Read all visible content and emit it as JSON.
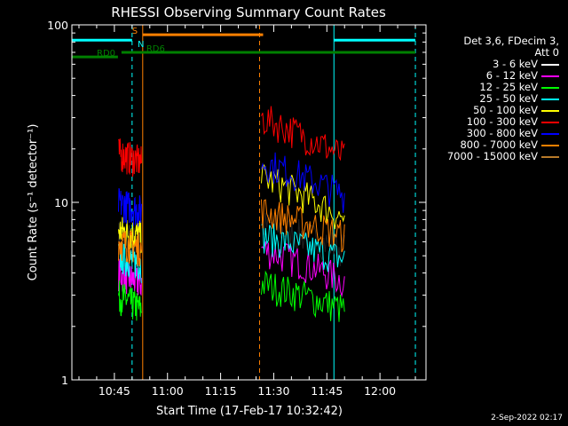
{
  "chart_data": {
    "type": "line",
    "title": "RHESSI Observing Summary Count Rates",
    "xlabel": "Start Time (17-Feb-17 10:32:42)",
    "ylabel": "Count Rate (s⁻¹ detector⁻¹)",
    "y_scale": "log",
    "ylim": [
      1,
      100
    ],
    "xlim": [
      "10:33",
      "12:13"
    ],
    "x_ticks": [
      "10:45",
      "11:00",
      "11:15",
      "11:30",
      "11:45",
      "12:00"
    ],
    "y_ticks": [
      "1",
      "10",
      "100"
    ],
    "legend_header": [
      "Det 3,6, FDecim 3,",
      "Att 0"
    ],
    "series": [
      {
        "name": "3 - 6 keV",
        "color": "#000000",
        "seg1": [
          6.5,
          6.0
        ],
        "seg2": [
          7.5,
          5.5
        ]
      },
      {
        "name": "6 - 12 keV",
        "color": "#ff00ff",
        "seg1": [
          4.0,
          3.5
        ],
        "seg2": [
          5.5,
          3.6
        ]
      },
      {
        "name": "12 - 25 keV",
        "color": "#00ff00",
        "seg1": [
          3.0,
          2.5
        ],
        "seg2": [
          3.5,
          2.5
        ]
      },
      {
        "name": "25 - 50 keV",
        "color": "#00ffff",
        "seg1": [
          5.0,
          4.5
        ],
        "seg2": [
          6.5,
          4.8
        ]
      },
      {
        "name": "50 - 100 keV",
        "color": "#ffff00",
        "seg1": [
          7.0,
          6.5
        ],
        "seg2": [
          14.0,
          8.0
        ]
      },
      {
        "name": "100 - 300 keV",
        "color": "#ff0000",
        "seg1": [
          19.0,
          17.0
        ],
        "seg2": [
          30.0,
          18.0
        ]
      },
      {
        "name": "300 - 800 keV",
        "color": "#0000ff",
        "seg1": [
          10.0,
          9.0
        ],
        "seg2": [
          17.0,
          11.0
        ]
      },
      {
        "name": "800 - 7000 keV",
        "color": "#ff8000",
        "seg1": [
          6.0,
          5.5
        ],
        "seg2": [
          9.0,
          6.5
        ]
      },
      {
        "name": "7000 - 15000 keV",
        "color": "#b87a2a",
        "seg1": [
          null,
          null
        ],
        "seg2": [
          null,
          null
        ]
      }
    ],
    "time_segments": [
      {
        "start": "10:46:10",
        "end": "10:52:40"
      },
      {
        "start": "11:26:30",
        "end": "11:50:00"
      }
    ],
    "state_bars": [
      {
        "label": "N",
        "color": "#00ffff",
        "level": 82,
        "start": "10:33",
        "end": "10:50"
      },
      {
        "label": "",
        "color": "#00ffff",
        "level": 82,
        "start": "11:47",
        "end": "12:10"
      },
      {
        "label": "S",
        "color": "#ff8000",
        "level": 88,
        "start": "10:53",
        "end": "11:27"
      },
      {
        "label": "RD0",
        "color": "#008000",
        "level": 66,
        "start": "10:33",
        "end": "10:46"
      },
      {
        "label": "RD6",
        "color": "#008000",
        "level": 70,
        "start": "10:47",
        "end": "12:10"
      }
    ],
    "vertical_markers": [
      {
        "time": "10:33",
        "color": "#00ffff",
        "style": "solid"
      },
      {
        "time": "10:50",
        "color": "#00ffff",
        "style": "dashed"
      },
      {
        "time": "10:53",
        "color": "#ff8000",
        "style": "solid"
      },
      {
        "time": "11:26",
        "color": "#ff8000",
        "style": "dashed"
      },
      {
        "time": "11:47",
        "color": "#00ffff",
        "style": "solid"
      },
      {
        "time": "12:10",
        "color": "#00ffff",
        "style": "dashed"
      }
    ]
  },
  "footer": {
    "timestamp": "2-Sep-2022 02:17"
  }
}
